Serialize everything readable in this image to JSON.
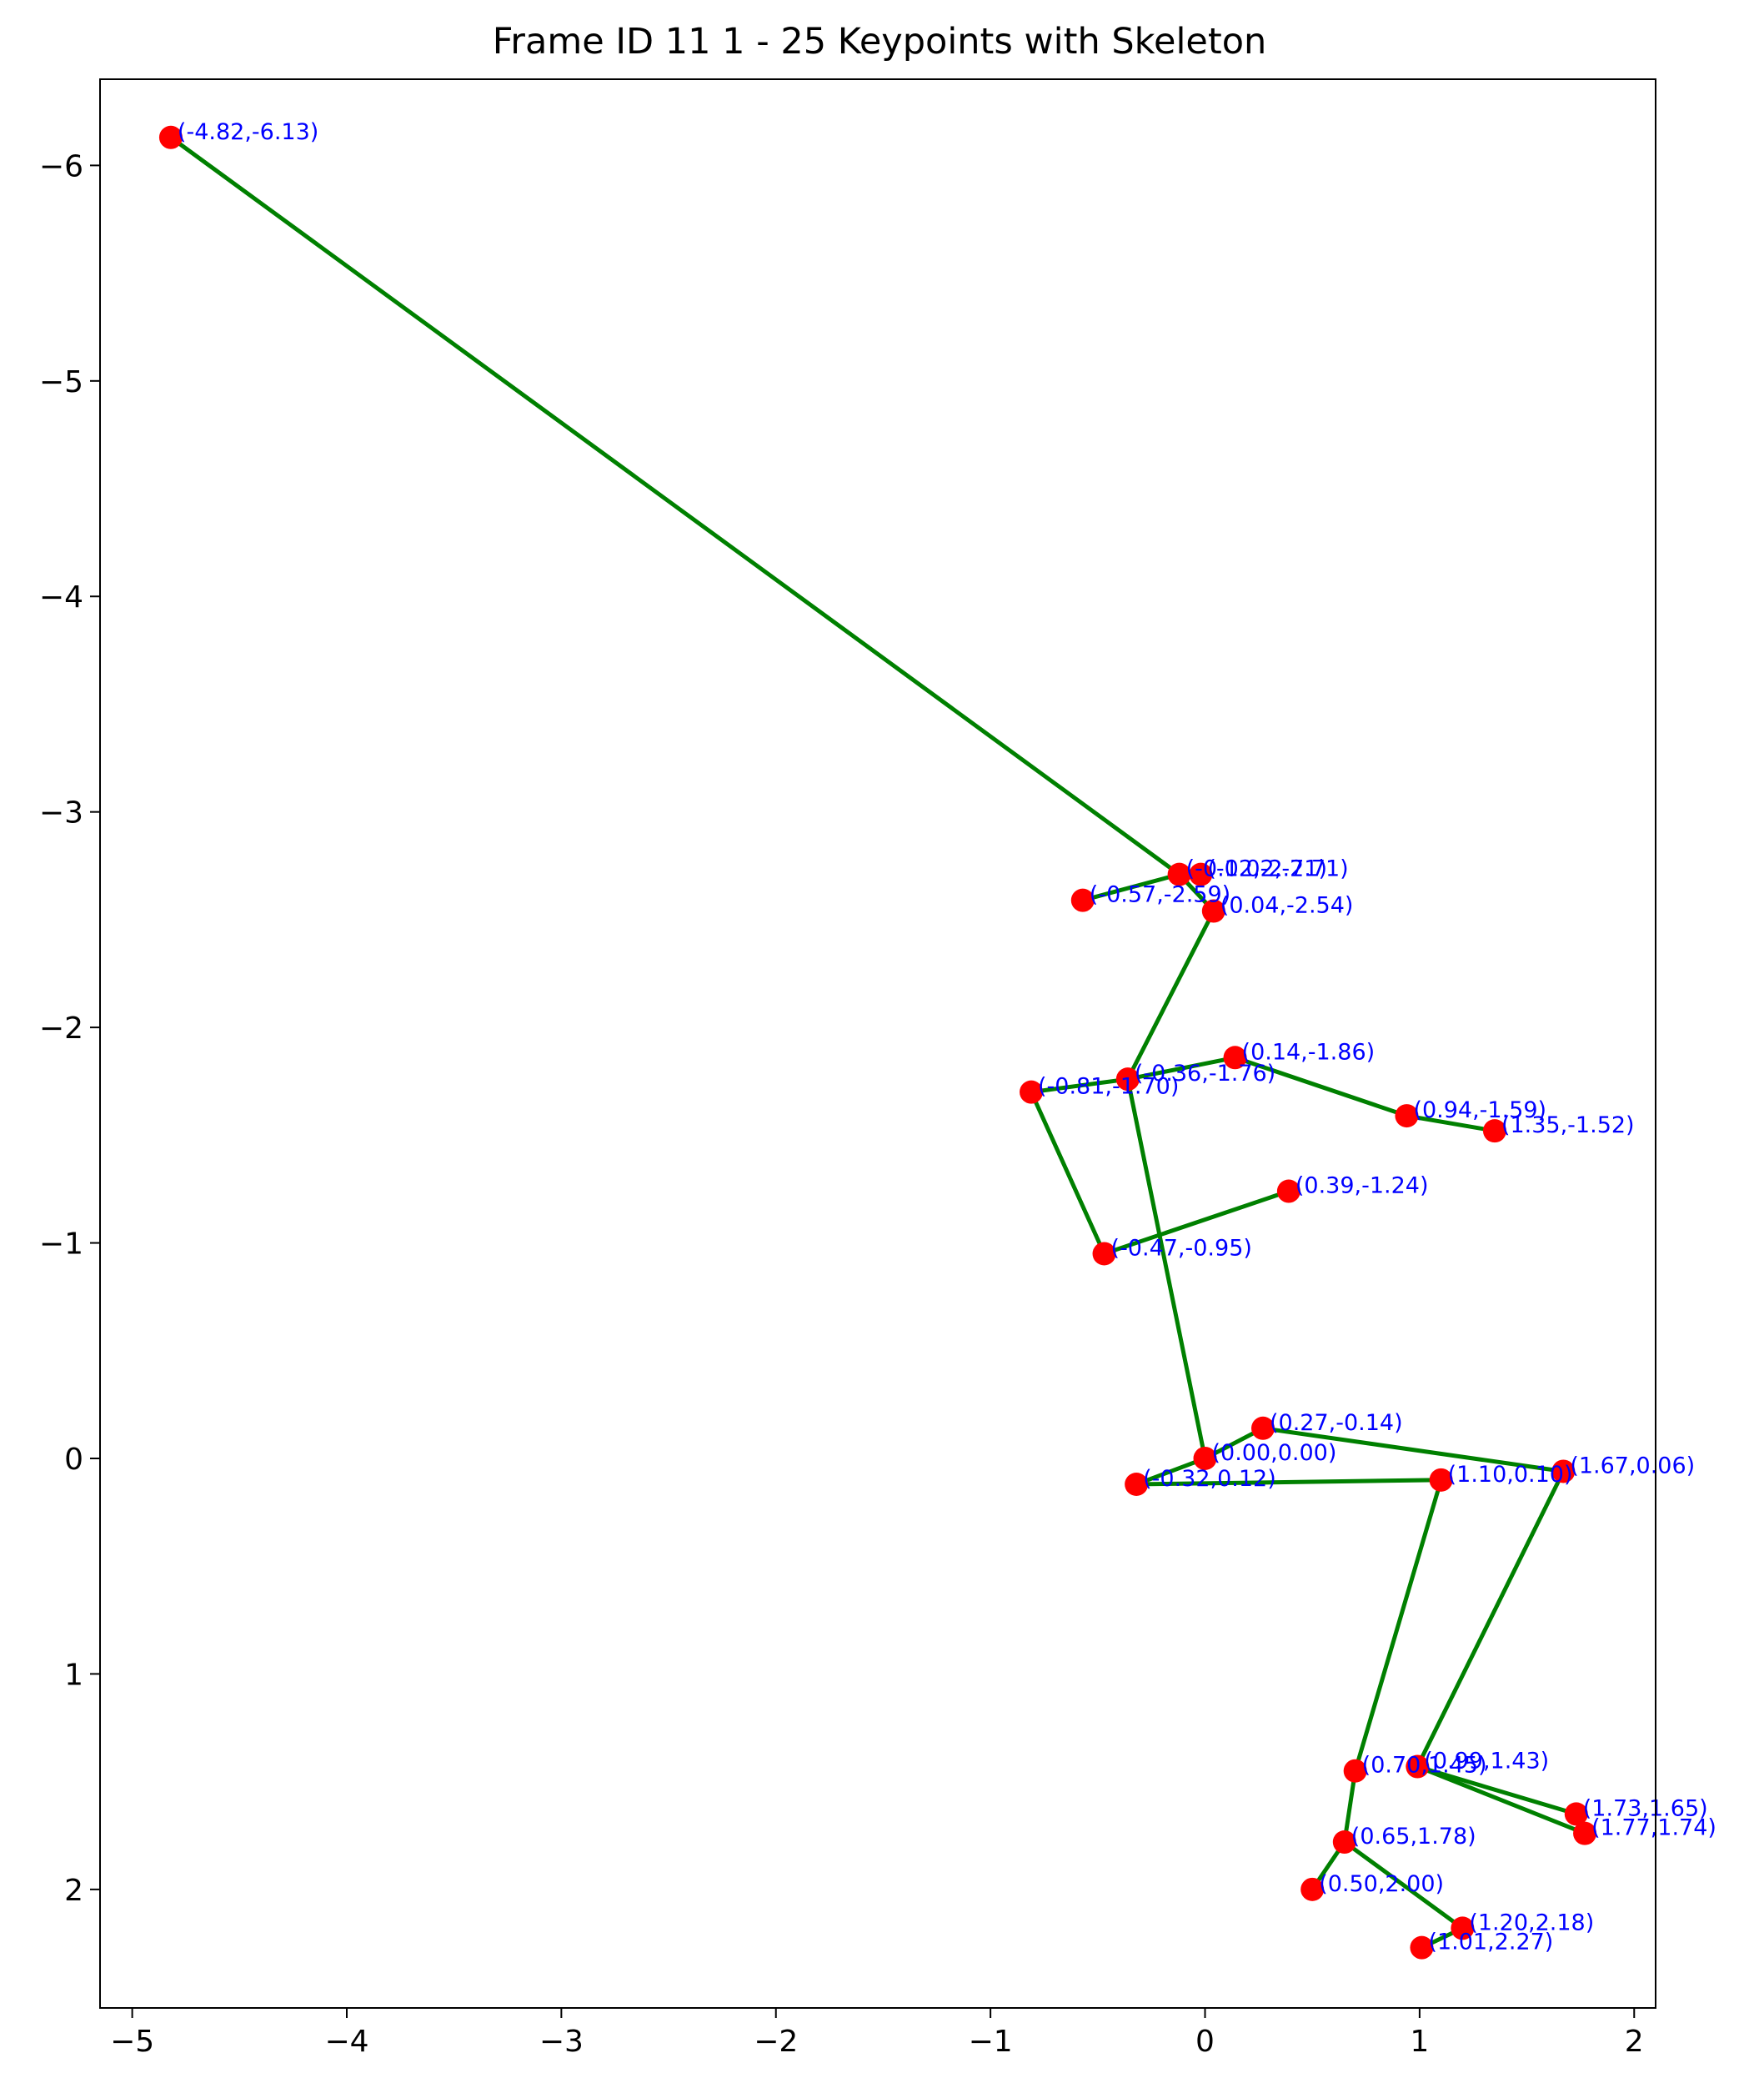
{
  "chart_data": {
    "type": "scatter",
    "title": "Frame ID 11 1 - 25 Keypoints with Skeleton",
    "xlabel": "",
    "ylabel": "",
    "xlim": [
      -5.15,
      2.1
    ],
    "ylim": [
      2.55,
      -6.4
    ],
    "y_inverted": true,
    "grid": false,
    "x_ticks": [
      -5,
      -4,
      -3,
      -2,
      -1,
      0,
      1,
      2
    ],
    "x_tick_labels": [
      "−5",
      "−4",
      "−3",
      "−2",
      "−1",
      "0",
      "1",
      "2"
    ],
    "y_ticks": [
      -6,
      -5,
      -4,
      -3,
      -2,
      -1,
      0,
      1,
      2
    ],
    "y_tick_labels": [
      "−6",
      "−5",
      "−4",
      "−3",
      "−2",
      "−1",
      "0",
      "1",
      "2"
    ],
    "colors": {
      "points": "#ff0000",
      "skeleton": "#008000",
      "labels": "#0000ff"
    },
    "keypoints": [
      {
        "x": -4.82,
        "y": -6.13,
        "label": "(-4.82,-6.13)"
      },
      {
        "x": -0.12,
        "y": -2.71,
        "label": "(-0.12,-2.71)"
      },
      {
        "x": -0.02,
        "y": -2.71,
        "label": "(-0.02,-2.71)"
      },
      {
        "x": 0.04,
        "y": -2.54,
        "label": "(0.04,-2.54)"
      },
      {
        "x": -0.57,
        "y": -2.59,
        "label": "(-0.57,-2.59)"
      },
      {
        "x": -0.36,
        "y": -1.76,
        "label": "(-0.36,-1.76)"
      },
      {
        "x": 0.14,
        "y": -1.86,
        "label": "(0.14,-1.86)"
      },
      {
        "x": 0.94,
        "y": -1.59,
        "label": "(0.94,-1.59)"
      },
      {
        "x": 1.35,
        "y": -1.52,
        "label": "(1.35,-1.52)"
      },
      {
        "x": -0.81,
        "y": -1.7,
        "label": "(-0.81,-1.70)"
      },
      {
        "x": -0.47,
        "y": -0.95,
        "label": "(-0.47,-0.95)"
      },
      {
        "x": 0.39,
        "y": -1.24,
        "label": "(0.39,-1.24)"
      },
      {
        "x": 0.0,
        "y": 0.0,
        "label": "(0.00,0.00)"
      },
      {
        "x": 0.27,
        "y": -0.14,
        "label": "(0.27,-0.14)"
      },
      {
        "x": 1.67,
        "y": 0.06,
        "label": "(1.67,0.06)"
      },
      {
        "x": -0.32,
        "y": 0.12,
        "label": "(-0.32,0.12)"
      },
      {
        "x": 1.1,
        "y": 0.1,
        "label": "(1.10,0.10)"
      },
      {
        "x": 0.7,
        "y": 1.45,
        "label": "(0.70,1.45)"
      },
      {
        "x": 0.99,
        "y": 1.43,
        "label": "(0.99,1.43)"
      },
      {
        "x": 1.73,
        "y": 1.65,
        "label": "(1.73,1.65)"
      },
      {
        "x": 1.77,
        "y": 1.74,
        "label": "(1.77,1.74)"
      },
      {
        "x": 0.65,
        "y": 1.78,
        "label": "(0.65,1.78)"
      },
      {
        "x": 0.5,
        "y": 2.0,
        "label": "(0.50,2.00)"
      },
      {
        "x": 1.2,
        "y": 2.18,
        "label": "(1.20,2.18)"
      },
      {
        "x": 1.01,
        "y": 2.27,
        "label": "(1.01,2.27)"
      }
    ],
    "skeleton": [
      [
        0,
        1
      ],
      [
        1,
        3
      ],
      [
        1,
        4
      ],
      [
        3,
        5
      ],
      [
        5,
        6
      ],
      [
        6,
        7
      ],
      [
        7,
        8
      ],
      [
        5,
        9
      ],
      [
        9,
        10
      ],
      [
        10,
        11
      ],
      [
        5,
        12
      ],
      [
        12,
        13
      ],
      [
        13,
        14
      ],
      [
        12,
        15
      ],
      [
        15,
        16
      ],
      [
        16,
        17
      ],
      [
        17,
        21
      ],
      [
        21,
        22
      ],
      [
        21,
        23
      ],
      [
        23,
        24
      ],
      [
        14,
        18
      ],
      [
        18,
        19
      ],
      [
        18,
        20
      ]
    ]
  }
}
